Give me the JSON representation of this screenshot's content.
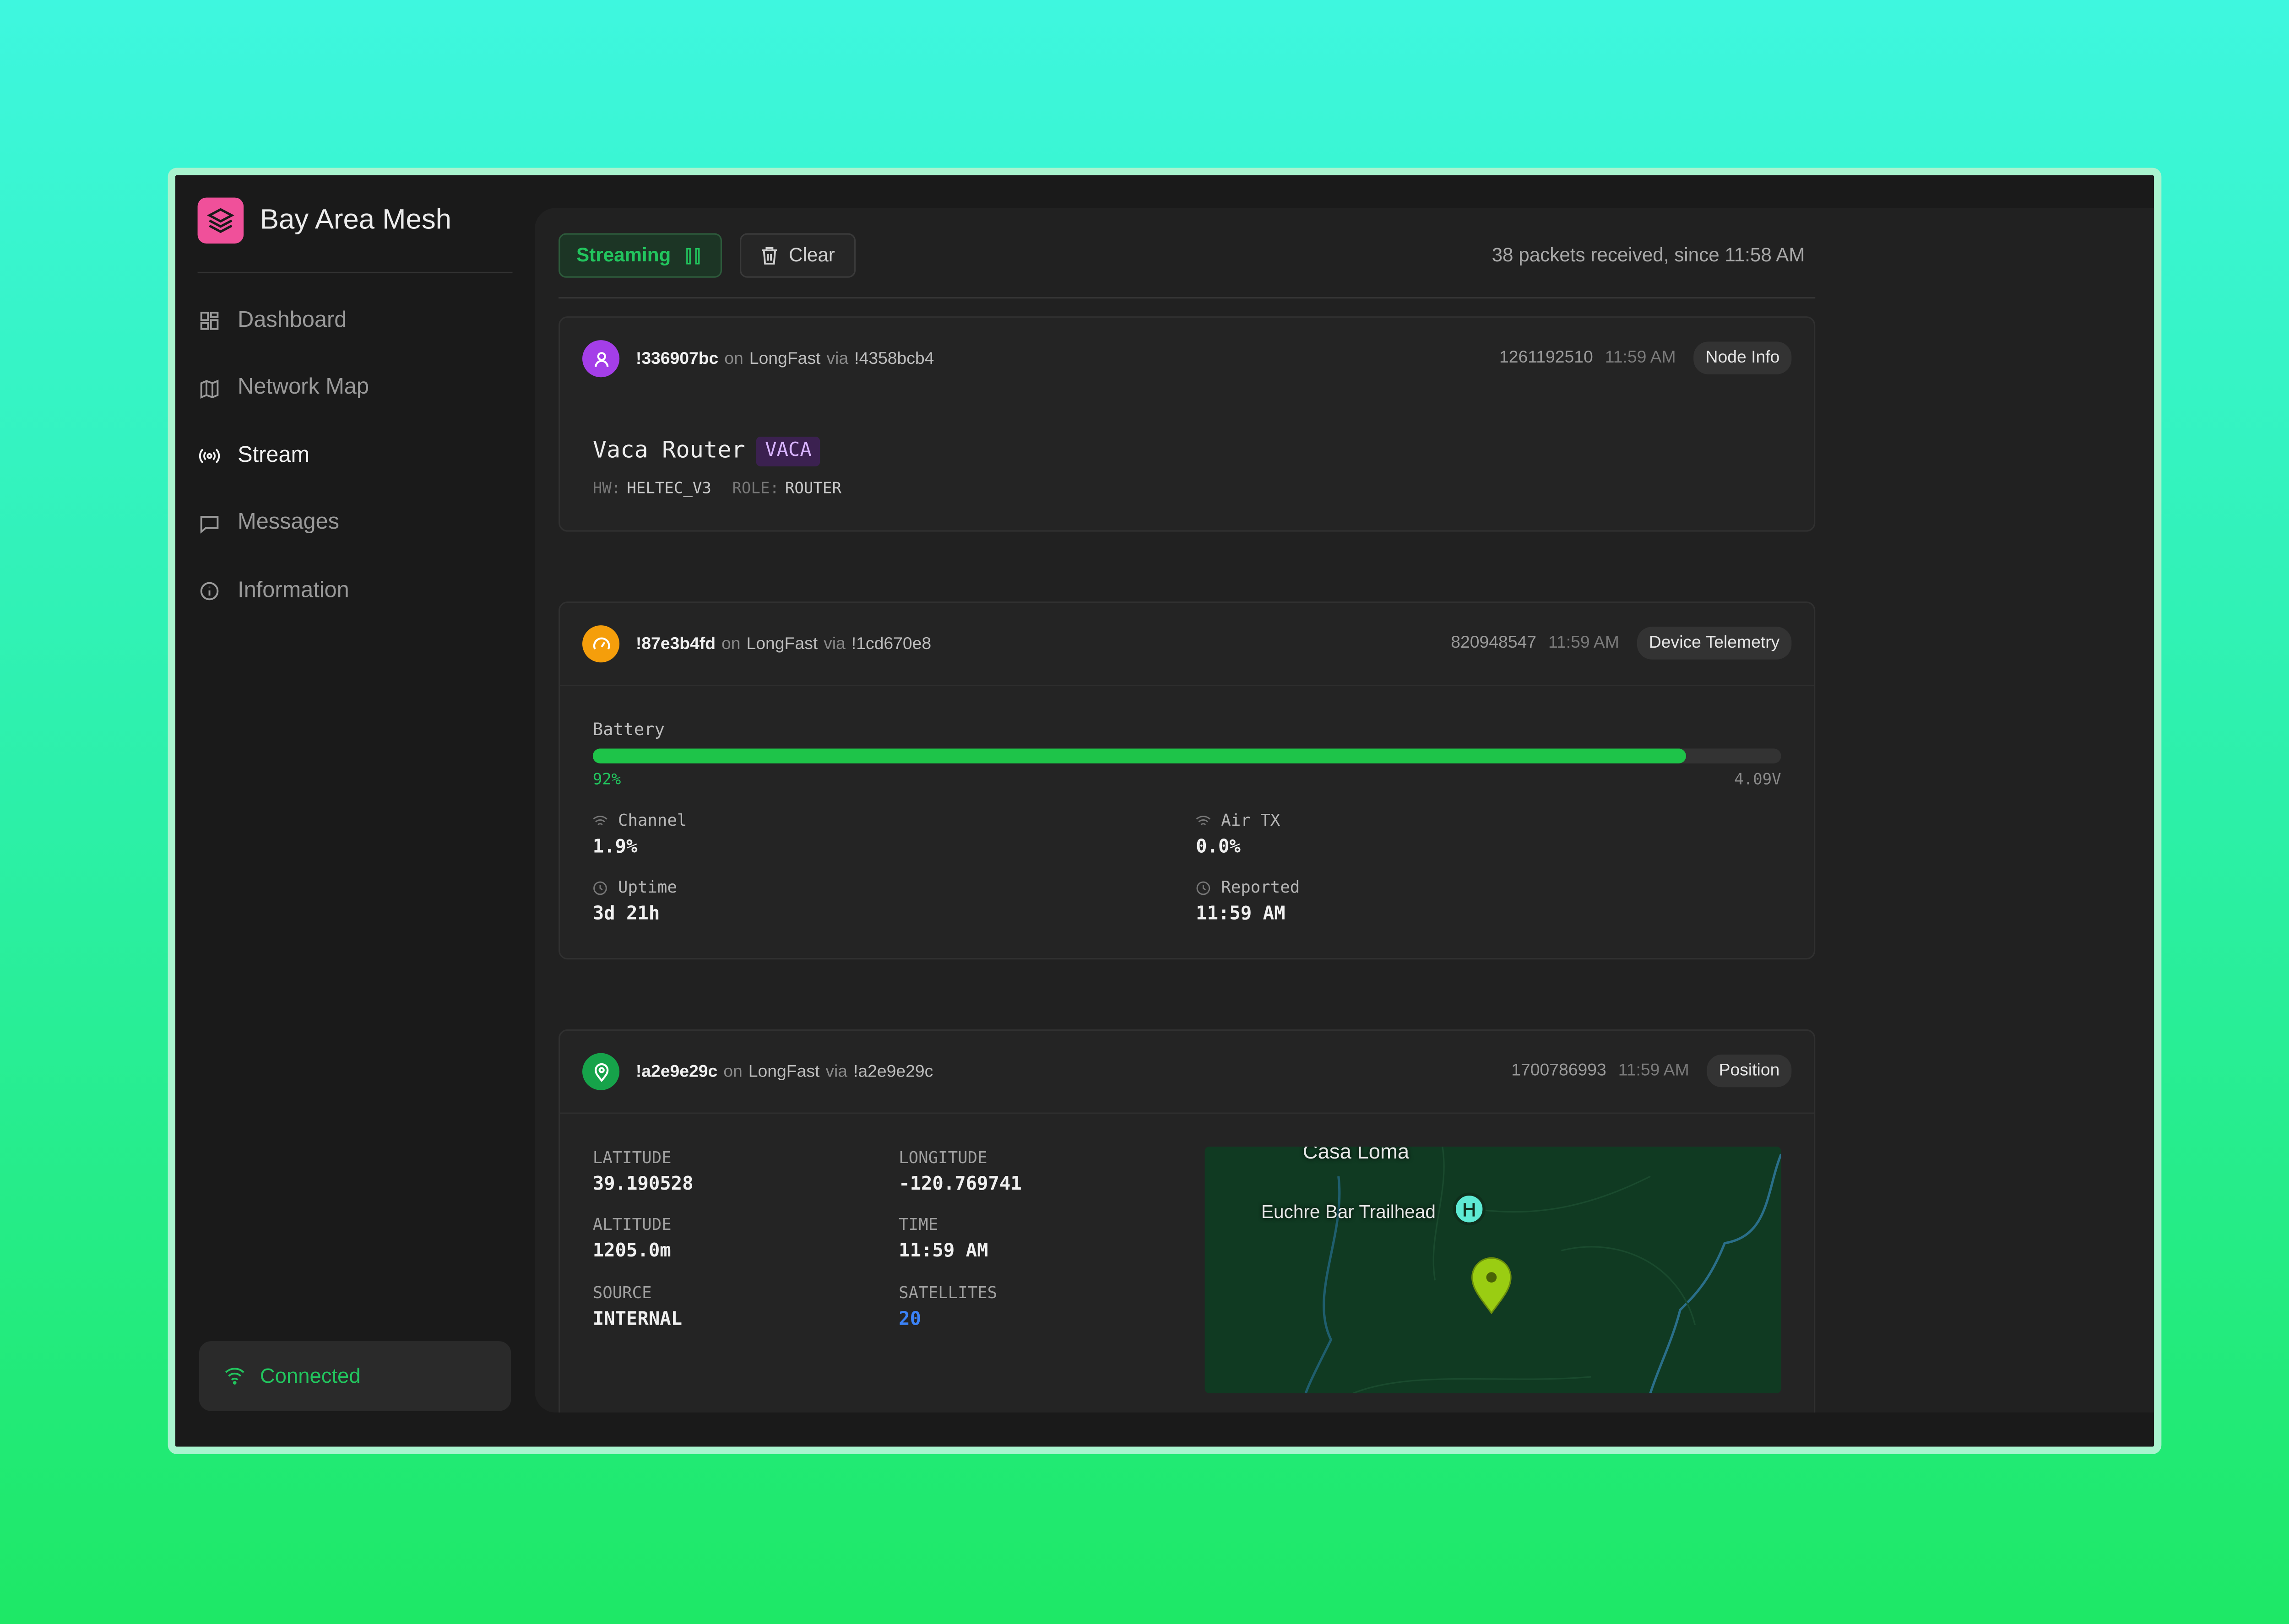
{
  "app": {
    "name": "Bay Area Mesh"
  },
  "nav": [
    "Dashboard",
    "Network Map",
    "Stream",
    "Messages",
    "Information"
  ],
  "status": "Connected",
  "toolbar": {
    "streaming": "Streaming",
    "clear": "Clear",
    "summary": "38 packets received, since 11:58 AM"
  },
  "packets": [
    {
      "from": "!336907bc",
      "on": "on",
      "channel": "LongFast",
      "via_label": "via",
      "via": "!4358bcb4",
      "id": "1261192510",
      "time": "11:59 AM",
      "type": "Node Info",
      "node": {
        "long_name": "Vaca Router",
        "short_name": "VACA",
        "hw_label": "HW:",
        "hw": "HELTEC_V3",
        "role_label": "ROLE:",
        "role": "ROUTER"
      }
    },
    {
      "from": "!87e3b4fd",
      "on": "on",
      "channel": "LongFast",
      "via_label": "via",
      "via": "!1cd670e8",
      "id": "820948547",
      "time": "11:59 AM",
      "type": "Device Telemetry",
      "telemetry": {
        "battery_label": "Battery",
        "battery": {
          "value": 92,
          "label": "92%"
        },
        "voltage": "4.09V",
        "metrics": [
          {
            "label": "Channel",
            "value": "1.9%"
          },
          {
            "label": "Air TX",
            "value": "0.0%"
          },
          {
            "label": "Uptime",
            "value": "3d 21h"
          },
          {
            "label": "Reported",
            "value": "11:59 AM"
          }
        ]
      }
    },
    {
      "from": "!a2e9e29c",
      "on": "on",
      "channel": "LongFast",
      "via_label": "via",
      "via": "!a2e9e29c",
      "id": "1700786993",
      "time": "11:59 AM",
      "type": "Position",
      "position": {
        "fields": [
          {
            "label": "LATITUDE",
            "value": "39.190528"
          },
          {
            "label": "LONGITUDE",
            "value": "-120.769741"
          },
          {
            "label": "ALTITUDE",
            "value": "1205.0m"
          },
          {
            "label": "TIME",
            "value": "11:59 AM"
          },
          {
            "label": "SOURCE",
            "value": "INTERNAL"
          },
          {
            "label": "SATELLITES",
            "value": "20"
          }
        ],
        "map_labels": [
          "Casa Loma",
          "Euchre Bar Trailhead"
        ]
      }
    }
  ]
}
